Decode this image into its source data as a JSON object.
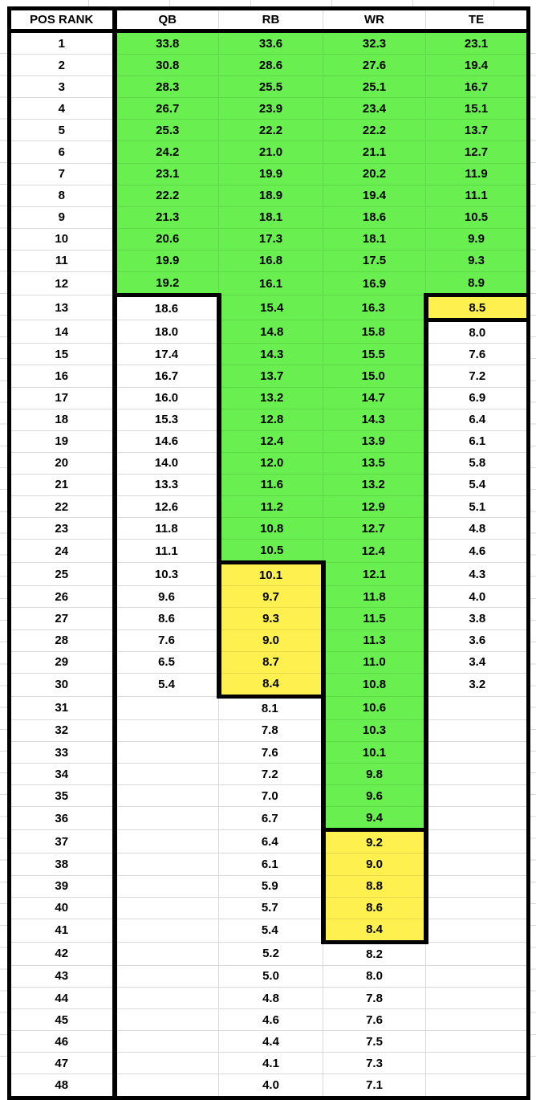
{
  "header": {
    "labels": [
      "POS RANK",
      "QB",
      "RB",
      "WR",
      "TE"
    ]
  },
  "columns": [
    "qb",
    "rb",
    "wr",
    "te"
  ],
  "zones": {
    "green": {
      "qb": [
        1,
        12
      ],
      "rb": [
        1,
        24
      ],
      "wr": [
        1,
        36
      ],
      "te": [
        1,
        12
      ]
    },
    "yellow": {
      "rb": [
        25,
        30
      ],
      "wr": [
        37,
        41
      ],
      "te": [
        13,
        13
      ]
    }
  },
  "colors": {
    "green_fill": "#69EF4F",
    "yellow_fill": "#FDF04F",
    "thick_border": "#000000",
    "gridline": "#D9D9D9",
    "text": "#000000"
  },
  "rows": [
    {
      "rank": "1",
      "qb": "33.8",
      "rb": "33.6",
      "wr": "32.3",
      "te": "23.1"
    },
    {
      "rank": "2",
      "qb": "30.8",
      "rb": "28.6",
      "wr": "27.6",
      "te": "19.4"
    },
    {
      "rank": "3",
      "qb": "28.3",
      "rb": "25.5",
      "wr": "25.1",
      "te": "16.7"
    },
    {
      "rank": "4",
      "qb": "26.7",
      "rb": "23.9",
      "wr": "23.4",
      "te": "15.1"
    },
    {
      "rank": "5",
      "qb": "25.3",
      "rb": "22.2",
      "wr": "22.2",
      "te": "13.7"
    },
    {
      "rank": "6",
      "qb": "24.2",
      "rb": "21.0",
      "wr": "21.1",
      "te": "12.7"
    },
    {
      "rank": "7",
      "qb": "23.1",
      "rb": "19.9",
      "wr": "20.2",
      "te": "11.9"
    },
    {
      "rank": "8",
      "qb": "22.2",
      "rb": "18.9",
      "wr": "19.4",
      "te": "11.1"
    },
    {
      "rank": "9",
      "qb": "21.3",
      "rb": "18.1",
      "wr": "18.6",
      "te": "10.5"
    },
    {
      "rank": "10",
      "qb": "20.6",
      "rb": "17.3",
      "wr": "18.1",
      "te": "9.9"
    },
    {
      "rank": "11",
      "qb": "19.9",
      "rb": "16.8",
      "wr": "17.5",
      "te": "9.3"
    },
    {
      "rank": "12",
      "qb": "19.2",
      "rb": "16.1",
      "wr": "16.9",
      "te": "8.9"
    },
    {
      "rank": "13",
      "qb": "18.6",
      "rb": "15.4",
      "wr": "16.3",
      "te": "8.5"
    },
    {
      "rank": "14",
      "qb": "18.0",
      "rb": "14.8",
      "wr": "15.8",
      "te": "8.0"
    },
    {
      "rank": "15",
      "qb": "17.4",
      "rb": "14.3",
      "wr": "15.5",
      "te": "7.6"
    },
    {
      "rank": "16",
      "qb": "16.7",
      "rb": "13.7",
      "wr": "15.0",
      "te": "7.2"
    },
    {
      "rank": "17",
      "qb": "16.0",
      "rb": "13.2",
      "wr": "14.7",
      "te": "6.9"
    },
    {
      "rank": "18",
      "qb": "15.3",
      "rb": "12.8",
      "wr": "14.3",
      "te": "6.4"
    },
    {
      "rank": "19",
      "qb": "14.6",
      "rb": "12.4",
      "wr": "13.9",
      "te": "6.1"
    },
    {
      "rank": "20",
      "qb": "14.0",
      "rb": "12.0",
      "wr": "13.5",
      "te": "5.8"
    },
    {
      "rank": "21",
      "qb": "13.3",
      "rb": "11.6",
      "wr": "13.2",
      "te": "5.4"
    },
    {
      "rank": "22",
      "qb": "12.6",
      "rb": "11.2",
      "wr": "12.9",
      "te": "5.1"
    },
    {
      "rank": "23",
      "qb": "11.8",
      "rb": "10.8",
      "wr": "12.7",
      "te": "4.8"
    },
    {
      "rank": "24",
      "qb": "11.1",
      "rb": "10.5",
      "wr": "12.4",
      "te": "4.6"
    },
    {
      "rank": "25",
      "qb": "10.3",
      "rb": "10.1",
      "wr": "12.1",
      "te": "4.3"
    },
    {
      "rank": "26",
      "qb": "9.6",
      "rb": "9.7",
      "wr": "11.8",
      "te": "4.0"
    },
    {
      "rank": "27",
      "qb": "8.6",
      "rb": "9.3",
      "wr": "11.5",
      "te": "3.8"
    },
    {
      "rank": "28",
      "qb": "7.6",
      "rb": "9.0",
      "wr": "11.3",
      "te": "3.6"
    },
    {
      "rank": "29",
      "qb": "6.5",
      "rb": "8.7",
      "wr": "11.0",
      "te": "3.4"
    },
    {
      "rank": "30",
      "qb": "5.4",
      "rb": "8.4",
      "wr": "10.8",
      "te": "3.2"
    },
    {
      "rank": "31",
      "qb": "",
      "rb": "8.1",
      "wr": "10.6",
      "te": ""
    },
    {
      "rank": "32",
      "qb": "",
      "rb": "7.8",
      "wr": "10.3",
      "te": ""
    },
    {
      "rank": "33",
      "qb": "",
      "rb": "7.6",
      "wr": "10.1",
      "te": ""
    },
    {
      "rank": "34",
      "qb": "",
      "rb": "7.2",
      "wr": "9.8",
      "te": ""
    },
    {
      "rank": "35",
      "qb": "",
      "rb": "7.0",
      "wr": "9.6",
      "te": ""
    },
    {
      "rank": "36",
      "qb": "",
      "rb": "6.7",
      "wr": "9.4",
      "te": ""
    },
    {
      "rank": "37",
      "qb": "",
      "rb": "6.4",
      "wr": "9.2",
      "te": ""
    },
    {
      "rank": "38",
      "qb": "",
      "rb": "6.1",
      "wr": "9.0",
      "te": ""
    },
    {
      "rank": "39",
      "qb": "",
      "rb": "5.9",
      "wr": "8.8",
      "te": ""
    },
    {
      "rank": "40",
      "qb": "",
      "rb": "5.7",
      "wr": "8.6",
      "te": ""
    },
    {
      "rank": "41",
      "qb": "",
      "rb": "5.4",
      "wr": "8.4",
      "te": ""
    },
    {
      "rank": "42",
      "qb": "",
      "rb": "5.2",
      "wr": "8.2",
      "te": ""
    },
    {
      "rank": "43",
      "qb": "",
      "rb": "5.0",
      "wr": "8.0",
      "te": ""
    },
    {
      "rank": "44",
      "qb": "",
      "rb": "4.8",
      "wr": "7.8",
      "te": ""
    },
    {
      "rank": "45",
      "qb": "",
      "rb": "4.6",
      "wr": "7.6",
      "te": ""
    },
    {
      "rank": "46",
      "qb": "",
      "rb": "4.4",
      "wr": "7.5",
      "te": ""
    },
    {
      "rank": "47",
      "qb": "",
      "rb": "4.1",
      "wr": "7.3",
      "te": ""
    },
    {
      "rank": "48",
      "qb": "",
      "rb": "4.0",
      "wr": "7.1",
      "te": ""
    }
  ]
}
